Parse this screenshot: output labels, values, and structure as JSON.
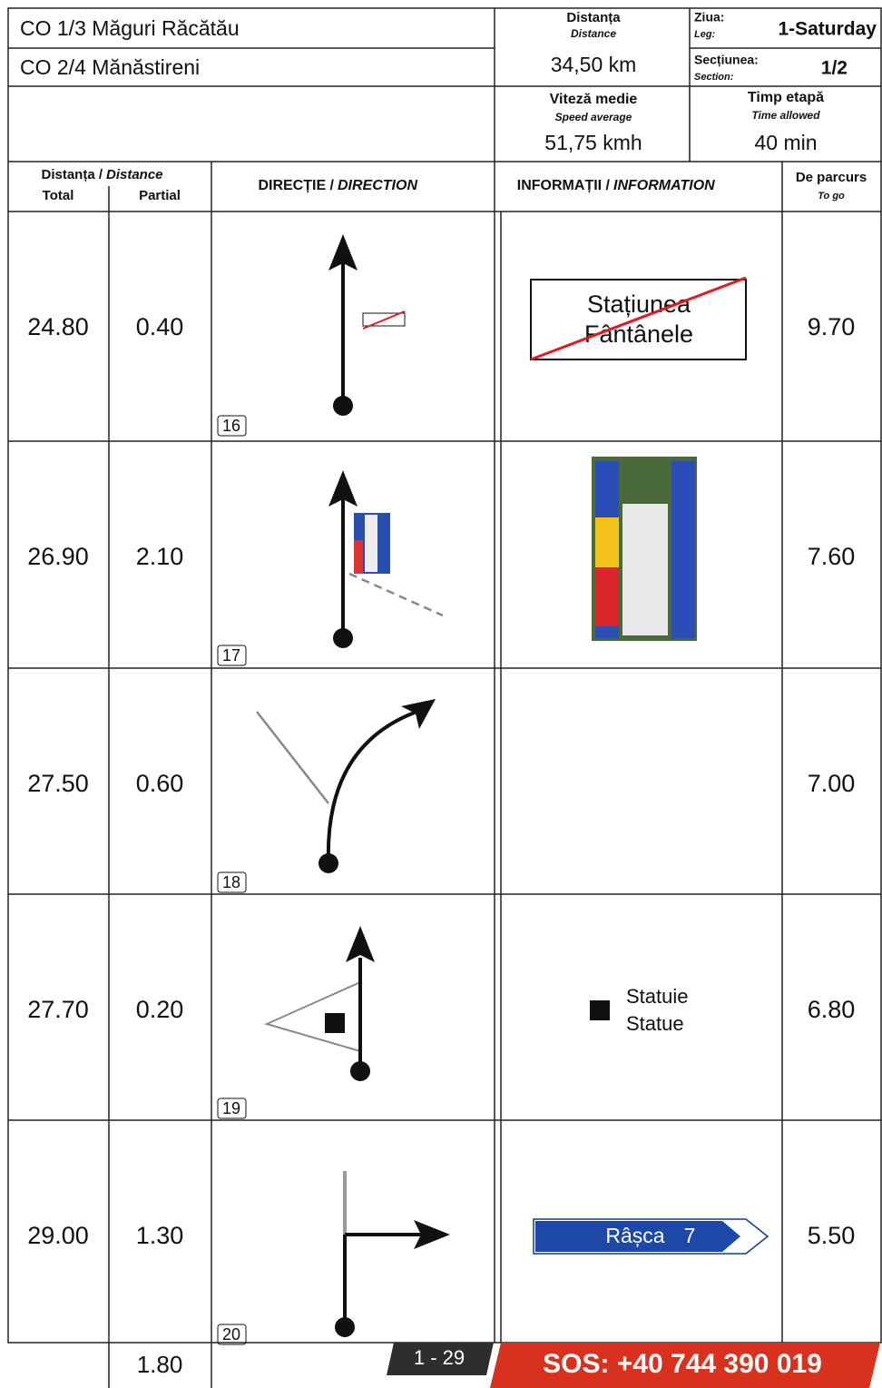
{
  "header": {
    "line1": "CO 1/3 Măguri Răcătău",
    "line2": "CO 2/4 Mănăstireni",
    "distance_label": "Distanța",
    "distance_label_en": "Distance",
    "distance_value": "34,50 km",
    "day_label": "Ziua:",
    "day_label_en": "Leg:",
    "day_value": "1-Saturday",
    "section_label": "Secțiunea:",
    "section_label_en": "Section:",
    "section_value": "1/2",
    "speed_label": "Viteză medie",
    "speed_label_en": "Speed average",
    "speed_value": "51,75 kmh",
    "time_label": "Timp etapă",
    "time_label_en": "Time allowed",
    "time_value": "40 min"
  },
  "columns": {
    "distance": "Distanța /",
    "distance_en": "Distance",
    "total": "Total",
    "partial": "Partial",
    "direction": "DIRECȚIE /",
    "direction_en": "DIRECTION",
    "information": "INFORMAȚII /",
    "information_en": "INFORMATION",
    "to_go": "De parcurs",
    "to_go_en": "To go"
  },
  "rows": [
    {
      "total": "24.80",
      "partial": "0.40",
      "to_go": "9.70",
      "number": "16",
      "info": [
        "Stațiunea",
        "Fântânele"
      ]
    },
    {
      "total": "26.90",
      "partial": "2.10",
      "to_go": "7.60",
      "number": "17",
      "info": []
    },
    {
      "total": "27.50",
      "partial": "0.60",
      "to_go": "7.00",
      "number": "18",
      "info": []
    },
    {
      "total": "27.70",
      "partial": "0.20",
      "to_go": "6.80",
      "number": "19",
      "info": [
        "Statuie",
        "Statue"
      ]
    },
    {
      "total": "29.00",
      "partial": "1.30",
      "to_go": "5.50",
      "number": "20",
      "info": [
        "Râșca",
        "7"
      ]
    }
  ],
  "footer": {
    "partial": "1.80",
    "page": "1 - 29",
    "sos": "SOS: +40 744 390 019"
  }
}
